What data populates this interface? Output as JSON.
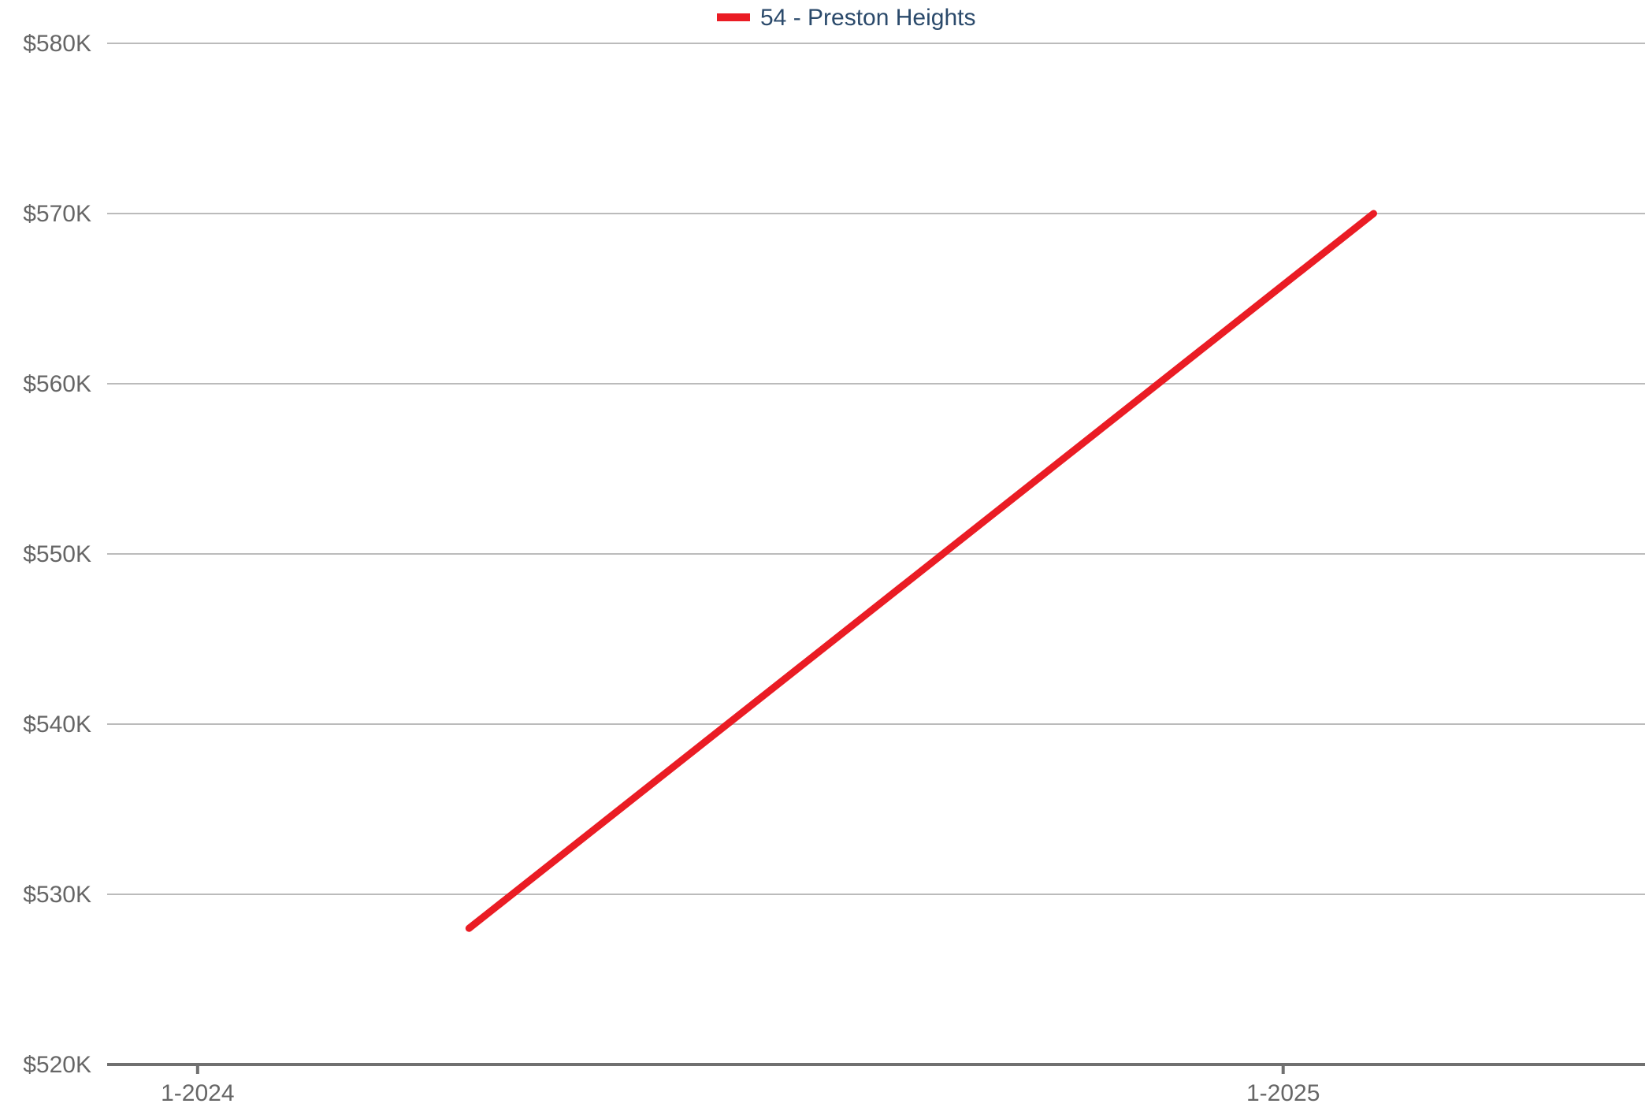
{
  "chart_data": {
    "type": "line",
    "title": "",
    "xlabel": "",
    "ylabel": "",
    "legend_position": "top-center",
    "grid": true,
    "colors": {
      "series": "#ea1c24",
      "legend_text": "#2b4a6b",
      "grid": "#bbbbbb",
      "axis": "#707070",
      "tick_text": "#666666"
    },
    "x_ticks": [
      {
        "value": "2024-01",
        "label": "1-2024"
      },
      {
        "value": "2025-01",
        "label": "1-2025"
      }
    ],
    "y_ticks": [
      {
        "value": 520000,
        "label": "$520K"
      },
      {
        "value": 530000,
        "label": "$530K"
      },
      {
        "value": 540000,
        "label": "$540K"
      },
      {
        "value": 550000,
        "label": "$550K"
      },
      {
        "value": 560000,
        "label": "$560K"
      },
      {
        "value": 570000,
        "label": "$570K"
      },
      {
        "value": 580000,
        "label": "$580K"
      }
    ],
    "ylim": [
      520000,
      580000
    ],
    "xlim": [
      "2023-12",
      "2025-05"
    ],
    "series": [
      {
        "name": "54 - Preston Heights",
        "points": [
          {
            "x": "2024-04",
            "y": 528000
          },
          {
            "x": "2025-02",
            "y": 570000
          }
        ]
      }
    ]
  }
}
